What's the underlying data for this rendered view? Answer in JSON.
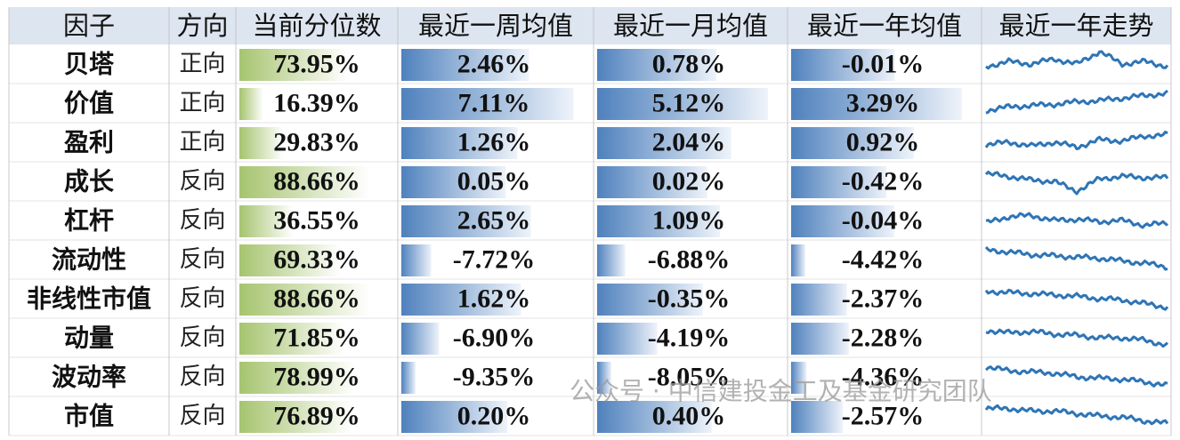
{
  "header": {
    "columns": [
      "因子",
      "方向",
      "当前分位数",
      "最近一周均值",
      "最近一月均值",
      "最近一年均值",
      "最近一年走势"
    ]
  },
  "table": {
    "rows": [
      [
        "贝塔",
        "正向",
        "73.95%",
        "2.46%",
        "0.78%",
        "-0.01%"
      ],
      [
        "价值",
        "正向",
        "16.39%",
        "7.11%",
        "5.12%",
        "3.29%"
      ],
      [
        "盈利",
        "正向",
        "29.83%",
        "1.26%",
        "2.04%",
        "0.92%"
      ],
      [
        "成长",
        "反向",
        "88.66%",
        "0.05%",
        "0.02%",
        "-0.42%"
      ],
      [
        "杠杆",
        "反向",
        "36.55%",
        "2.65%",
        "1.09%",
        "-0.04%"
      ],
      [
        "流动性",
        "反向",
        "69.33%",
        "-7.72%",
        "-6.88%",
        "-4.42%"
      ],
      [
        "非线性市值",
        "反向",
        "88.66%",
        "1.62%",
        "-0.35%",
        "-2.37%"
      ],
      [
        "动量",
        "反向",
        "71.85%",
        "-6.90%",
        "-4.19%",
        "-2.28%"
      ],
      [
        "波动率",
        "反向",
        "78.99%",
        "-9.35%",
        "-8.05%",
        "-4.36%"
      ],
      [
        "市值",
        "反向",
        "76.89%",
        "0.20%",
        "0.40%",
        "-2.57%"
      ]
    ]
  },
  "watermark": "公众号 · 中信建投金工及基金研究团队"
}
